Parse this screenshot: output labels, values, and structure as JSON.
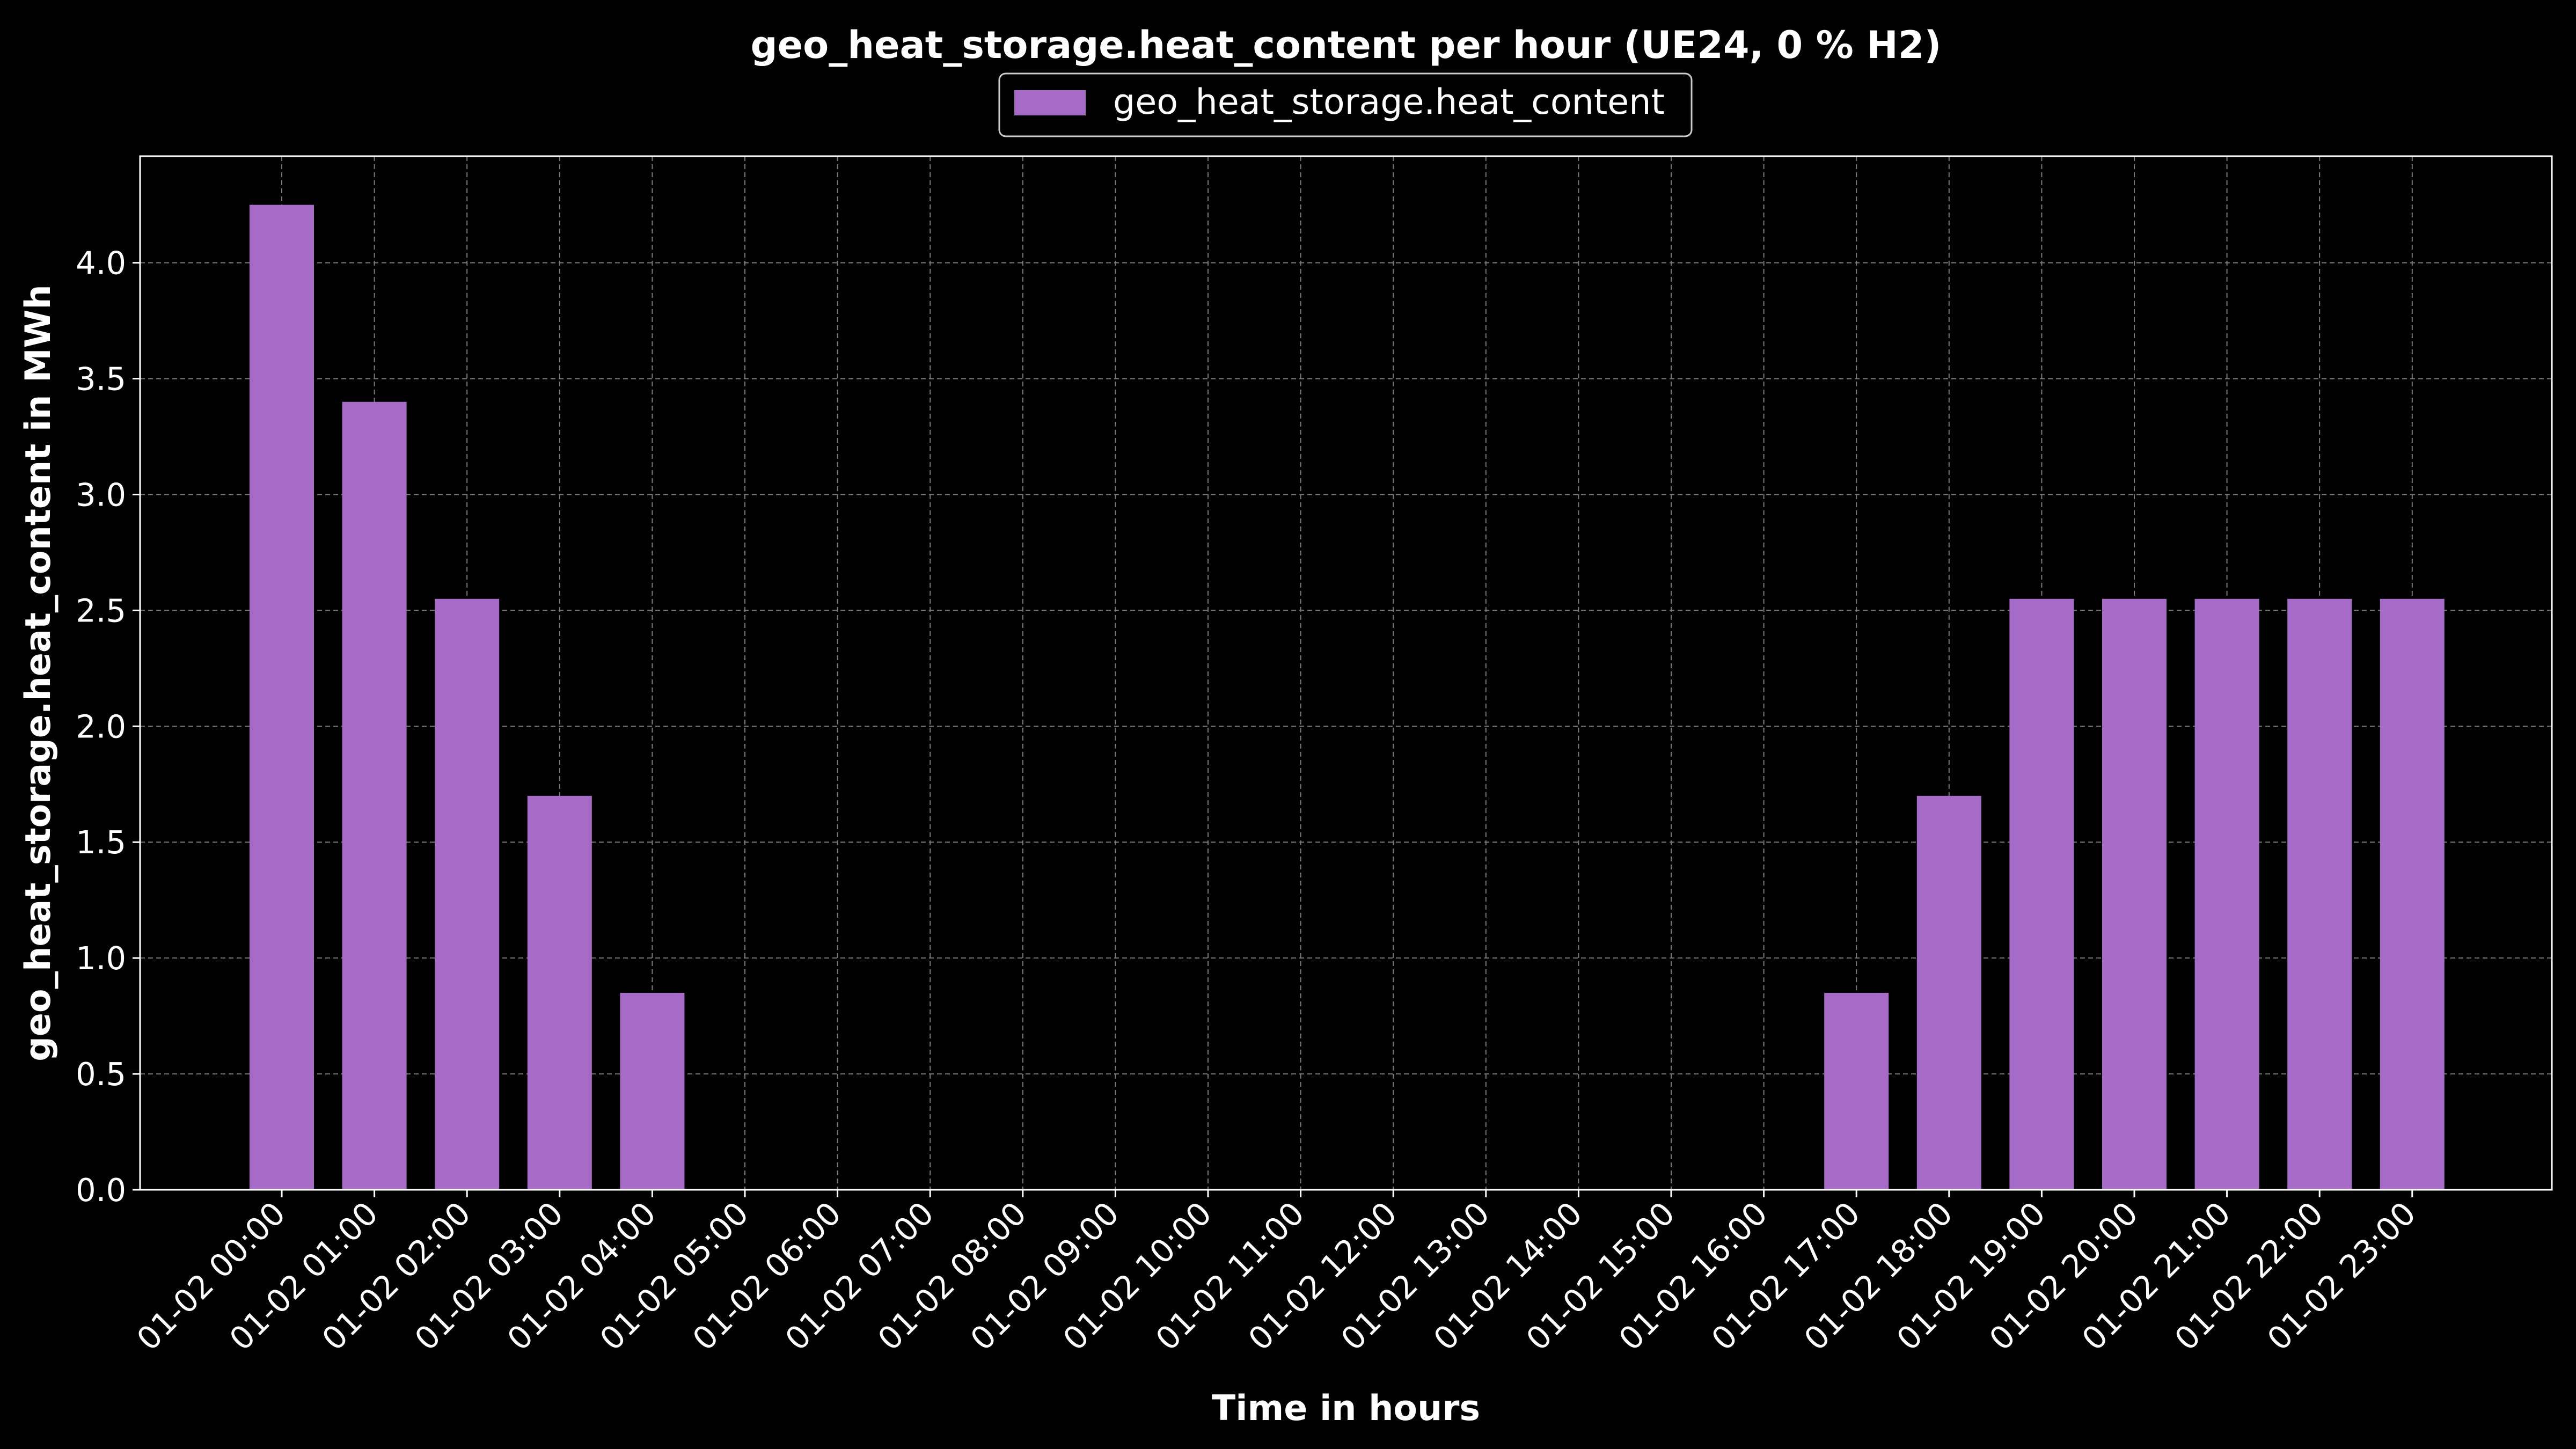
{
  "chart_data": {
    "type": "bar",
    "title": "geo_heat_storage.heat_content per hour (UE24, 0 % H2)",
    "xlabel": "Time in hours",
    "ylabel": "geo_heat_storage.heat_content in MWh",
    "categories": [
      "01-02 00:00",
      "01-02 01:00",
      "01-02 02:00",
      "01-02 03:00",
      "01-02 04:00",
      "01-02 05:00",
      "01-02 06:00",
      "01-02 07:00",
      "01-02 08:00",
      "01-02 09:00",
      "01-02 10:00",
      "01-02 11:00",
      "01-02 12:00",
      "01-02 13:00",
      "01-02 14:00",
      "01-02 15:00",
      "01-02 16:00",
      "01-02 17:00",
      "01-02 18:00",
      "01-02 19:00",
      "01-02 20:00",
      "01-02 21:00",
      "01-02 22:00",
      "01-02 23:00"
    ],
    "series": [
      {
        "name": "geo_heat_storage.heat_content",
        "color": "#a66bc6",
        "values": [
          4.25,
          3.4,
          2.55,
          1.7,
          0.85,
          0,
          0,
          0,
          0,
          0,
          0,
          0,
          0,
          0,
          0,
          0,
          0,
          0.85,
          1.7,
          2.55,
          2.55,
          2.55,
          2.55,
          2.55
        ]
      }
    ],
    "yticks": [
      "0.0",
      "0.5",
      "1.0",
      "1.5",
      "2.0",
      "2.5",
      "3.0",
      "3.5",
      "4.0"
    ],
    "ylim": [
      0,
      4.46
    ],
    "grid": true,
    "legend_position": "top-center",
    "background": "#000000",
    "foreground": "#ffffff"
  }
}
